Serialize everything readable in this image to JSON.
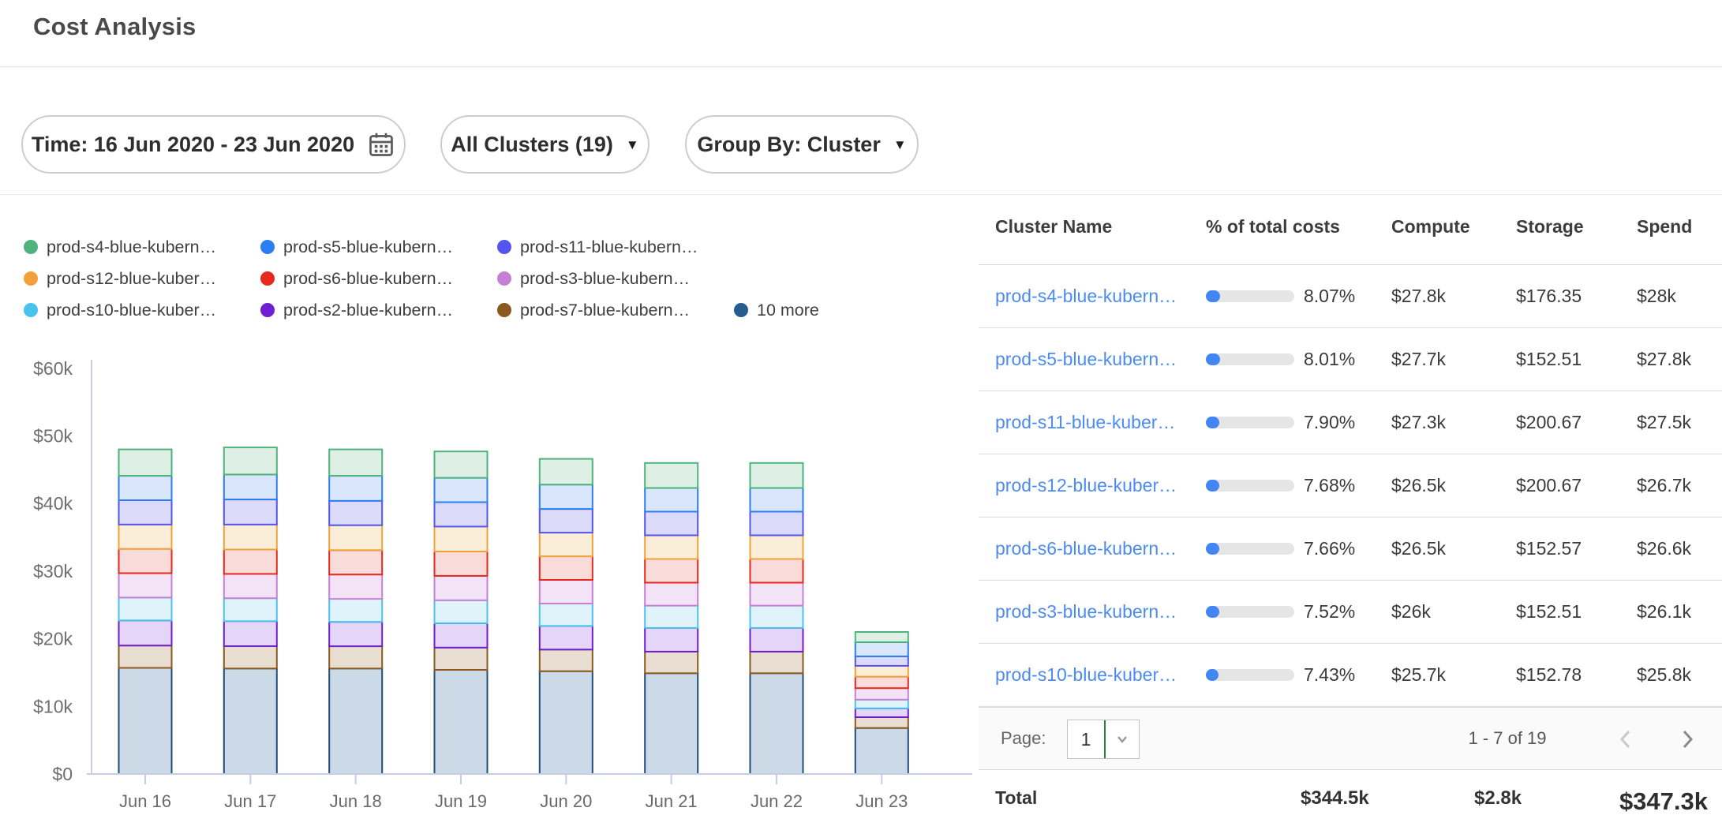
{
  "page": {
    "title": "Cost Analysis"
  },
  "filters": {
    "time": {
      "label": "Time: 16 Jun 2020 - 23 Jun 2020",
      "icon": "calendar-icon"
    },
    "clusters": {
      "label": "All Clusters (19)",
      "icon": "chevron-down-icon"
    },
    "group_by": {
      "label": "Group By: Cluster",
      "icon": "chevron-down-icon"
    }
  },
  "legend": {
    "items": [
      {
        "label": "prod-s4-blue-kubern…",
        "color": "#4fb37e"
      },
      {
        "label": "prod-s5-blue-kubern…",
        "color": "#2b7ff2"
      },
      {
        "label": "prod-s11-blue-kubern…",
        "color": "#5454ef"
      },
      {
        "label": "prod-s12-blue-kuber…",
        "color": "#f2a13a"
      },
      {
        "label": "prod-s6-blue-kubern…",
        "color": "#e8271f"
      },
      {
        "label": "prod-s3-blue-kubern…",
        "color": "#c580d6"
      },
      {
        "label": "prod-s10-blue-kuber…",
        "color": "#49c3ee"
      },
      {
        "label": "prod-s2-blue-kubern…",
        "color": "#6d1fd1"
      },
      {
        "label": "prod-s7-blue-kubern…",
        "color": "#8a5a1e"
      },
      {
        "label": "10 more",
        "color": "#275c8e"
      }
    ]
  },
  "chart_data": {
    "type": "bar",
    "stacked": true,
    "stack_order": "first series at top of stack",
    "categories": [
      "Jun 16",
      "Jun 17",
      "Jun 18",
      "Jun 19",
      "Jun 20",
      "Jun 21",
      "Jun 22",
      "Jun 23"
    ],
    "unit": "USD thousands",
    "ylim": [
      0,
      60
    ],
    "yticks": [
      {
        "value": 60,
        "label": "$60k"
      },
      {
        "value": 50,
        "label": "$50k"
      },
      {
        "value": 40,
        "label": "$40k"
      },
      {
        "value": 30,
        "label": "$30k"
      },
      {
        "value": 20,
        "label": "$20k"
      },
      {
        "value": 10,
        "label": "$10k"
      },
      {
        "value": 0,
        "label": "$0"
      }
    ],
    "series": [
      {
        "name": "prod-s4-blue-kubern…",
        "color": "#4fb37e",
        "fill": "#def0e6",
        "values": [
          3.9,
          4.0,
          3.9,
          3.9,
          3.8,
          3.7,
          3.7,
          1.5
        ]
      },
      {
        "name": "prod-s5-blue-kubern…",
        "color": "#2b7ff2",
        "fill": "#d9e6fb",
        "values": [
          3.6,
          3.7,
          3.7,
          3.6,
          3.6,
          3.5,
          3.5,
          2.1
        ]
      },
      {
        "name": "prod-s11-blue-kubern…",
        "color": "#5454ef",
        "fill": "#dcdaf9",
        "values": [
          3.6,
          3.7,
          3.6,
          3.6,
          3.5,
          3.5,
          3.5,
          1.4
        ]
      },
      {
        "name": "prod-s12-blue-kuber…",
        "color": "#f2a13a",
        "fill": "#fbeed8",
        "values": [
          3.6,
          3.7,
          3.7,
          3.7,
          3.5,
          3.5,
          3.5,
          1.6
        ]
      },
      {
        "name": "prod-s6-blue-kubern…",
        "color": "#e8271f",
        "fill": "#f9dcda",
        "values": [
          3.6,
          3.6,
          3.6,
          3.6,
          3.5,
          3.5,
          3.5,
          1.7
        ]
      },
      {
        "name": "prod-s3-blue-kubern…",
        "color": "#c580d6",
        "fill": "#f2e3f6",
        "values": [
          3.6,
          3.6,
          3.6,
          3.6,
          3.5,
          3.4,
          3.4,
          1.7
        ]
      },
      {
        "name": "prod-s10-blue-kuber…",
        "color": "#49c3ee",
        "fill": "#e1f3fa",
        "values": [
          3.4,
          3.4,
          3.4,
          3.4,
          3.3,
          3.3,
          3.3,
          1.3
        ]
      },
      {
        "name": "prod-s2-blue-kubern…",
        "color": "#6d1fd1",
        "fill": "#e5d6f7",
        "values": [
          3.7,
          3.7,
          3.6,
          3.6,
          3.5,
          3.5,
          3.5,
          1.3
        ]
      },
      {
        "name": "prod-s7-blue-kubern…",
        "color": "#8a5a1e",
        "fill": "#e9ded2",
        "values": [
          3.3,
          3.3,
          3.3,
          3.3,
          3.2,
          3.2,
          3.2,
          1.6
        ]
      },
      {
        "name": "10 more",
        "color": "#1f4e79",
        "fill": "#ccd9e6",
        "values": [
          15.7,
          15.6,
          15.6,
          15.4,
          15.2,
          14.9,
          14.9,
          6.8
        ]
      }
    ]
  },
  "table": {
    "columns": [
      "Cluster Name",
      "% of total costs",
      "Compute",
      "Storage",
      "Spend"
    ],
    "rows": [
      {
        "name": "prod-s4-blue-kubern…",
        "pct_value": 8.07,
        "pct": "8.07%",
        "compute": "$27.8k",
        "storage": "$176.35",
        "spend": "$28k"
      },
      {
        "name": "prod-s5-blue-kubern…",
        "pct_value": 8.01,
        "pct": "8.01%",
        "compute": "$27.7k",
        "storage": "$152.51",
        "spend": "$27.8k"
      },
      {
        "name": "prod-s11-blue-kuber…",
        "pct_value": 7.9,
        "pct": "7.90%",
        "compute": "$27.3k",
        "storage": "$200.67",
        "spend": "$27.5k"
      },
      {
        "name": "prod-s12-blue-kuber…",
        "pct_value": 7.68,
        "pct": "7.68%",
        "compute": "$26.5k",
        "storage": "$200.67",
        "spend": "$26.7k"
      },
      {
        "name": "prod-s6-blue-kubern…",
        "pct_value": 7.66,
        "pct": "7.66%",
        "compute": "$26.5k",
        "storage": "$152.57",
        "spend": "$26.6k"
      },
      {
        "name": "prod-s3-blue-kubern…",
        "pct_value": 7.52,
        "pct": "7.52%",
        "compute": "$26k",
        "storage": "$152.51",
        "spend": "$26.1k"
      },
      {
        "name": "prod-s10-blue-kuber…",
        "pct_value": 7.43,
        "pct": "7.43%",
        "compute": "$25.7k",
        "storage": "$152.78",
        "spend": "$25.8k"
      }
    ],
    "pagination": {
      "page_label": "Page:",
      "page_value": "1",
      "range": "1 - 7 of 19"
    },
    "total": {
      "label": "Total",
      "compute": "$344.5k",
      "storage": "$2.8k",
      "spend": "$347.3k"
    }
  },
  "colors": {
    "link": "#4b8bf2",
    "progress_fill": "#4285f4",
    "progress_track": "#e5e5e5",
    "axis_line": "#c6cde4",
    "accent_green": "#2f7d3b"
  }
}
